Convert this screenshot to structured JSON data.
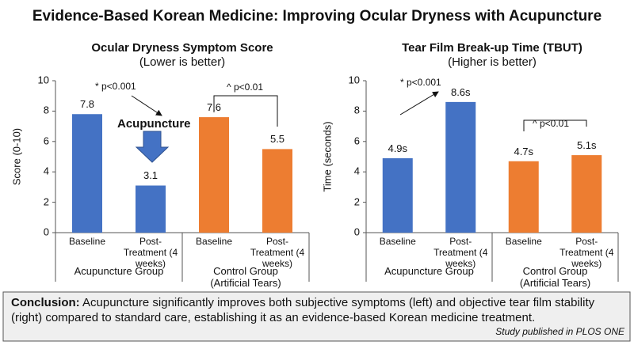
{
  "title": "Evidence-Based Korean Medicine: Improving Ocular Dryness with Acupuncture",
  "chart_data": [
    {
      "type": "bar",
      "title": "Ocular Dryness Symptom Score",
      "subtitle": "(Lower is better)",
      "y_label": "Score (0-10)",
      "categories": [
        "Baseline",
        "Post-Treatment (4 weeks)",
        "Baseline",
        "Post-Treatment (4 weeks)"
      ],
      "groups": [
        "Acupuncture Group",
        "Control Group (Artificial Tears)"
      ],
      "values": [
        7.8,
        3.1,
        7.6,
        5.5
      ],
      "colors": [
        "#4472c4",
        "#4472c4",
        "#ed7d31",
        "#ed7d31"
      ],
      "ylim": [
        0,
        10
      ],
      "yticks": [
        0,
        2,
        4,
        6,
        8,
        10
      ],
      "annotations": [
        "* p<0.001",
        "Acupuncture",
        "^ p<0.01"
      ]
    },
    {
      "type": "bar",
      "title": "Tear Film Break-up Time (TBUT)",
      "subtitle": "(Higher is better)",
      "y_label": "Time (seconds)",
      "categories": [
        "Baseline",
        "Post-Treatment (4 weeks)",
        "Baseline",
        "Post-Treatment (4 weeks)"
      ],
      "groups": [
        "Acupuncture Group",
        "Control Group (Artificial Tears)"
      ],
      "values": [
        4.9,
        8.6,
        4.7,
        5.1
      ],
      "value_labels": [
        "4.9s",
        "8.6s",
        "4.7s",
        "5.1s"
      ],
      "colors": [
        "#4472c4",
        "#4472c4",
        "#ed7d31",
        "#ed7d31"
      ],
      "ylim": [
        0,
        10
      ],
      "yticks": [
        0,
        2,
        4,
        6,
        8,
        10
      ],
      "annotations": [
        "* p<0.001",
        "^ p<0.01"
      ]
    }
  ],
  "conclusion": {
    "label": "Conclusion:",
    "text": "Acupuncture significantly improves both subjective symptoms (left) and objective tear film stability (right) compared to standard care, establishing it as an evidence-based Korean medicine treatment."
  },
  "source": "Study published in PLOS ONE"
}
